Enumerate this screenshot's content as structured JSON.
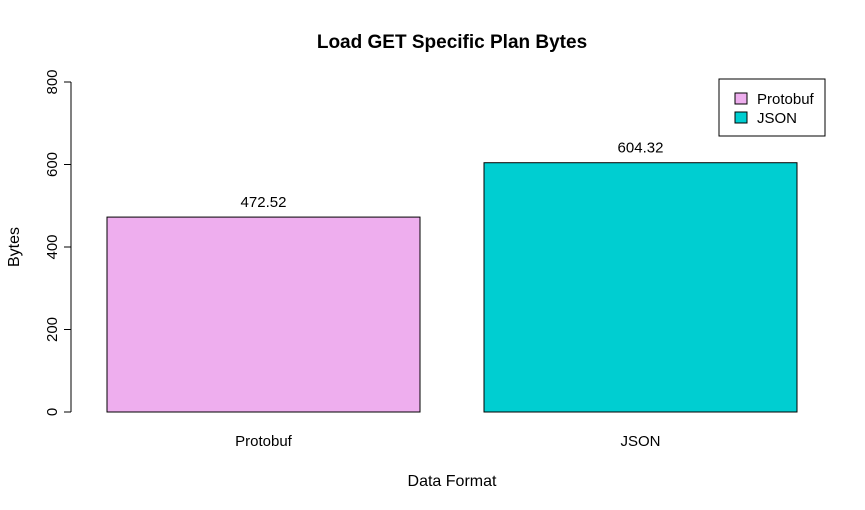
{
  "chart_data": {
    "type": "bar",
    "title": "Load GET Specific Plan Bytes",
    "xlabel": "Data Format",
    "ylabel": "Bytes",
    "categories": [
      "Protobuf",
      "JSON"
    ],
    "values": [
      472.52,
      604.32
    ],
    "value_labels": [
      "472.52",
      "604.32"
    ],
    "colors": [
      "#EEAEEE",
      "#00CED1"
    ],
    "ylim": [
      0,
      800
    ],
    "yticks": [
      0,
      200,
      400,
      600,
      800
    ],
    "ytick_labels": [
      "0",
      "200",
      "400",
      "600",
      "800"
    ],
    "grid": false,
    "legend": {
      "position": "top-right",
      "entries": [
        {
          "label": "Protobuf",
          "color": "#EEAEEE"
        },
        {
          "label": "JSON",
          "color": "#00CED1"
        }
      ]
    }
  }
}
